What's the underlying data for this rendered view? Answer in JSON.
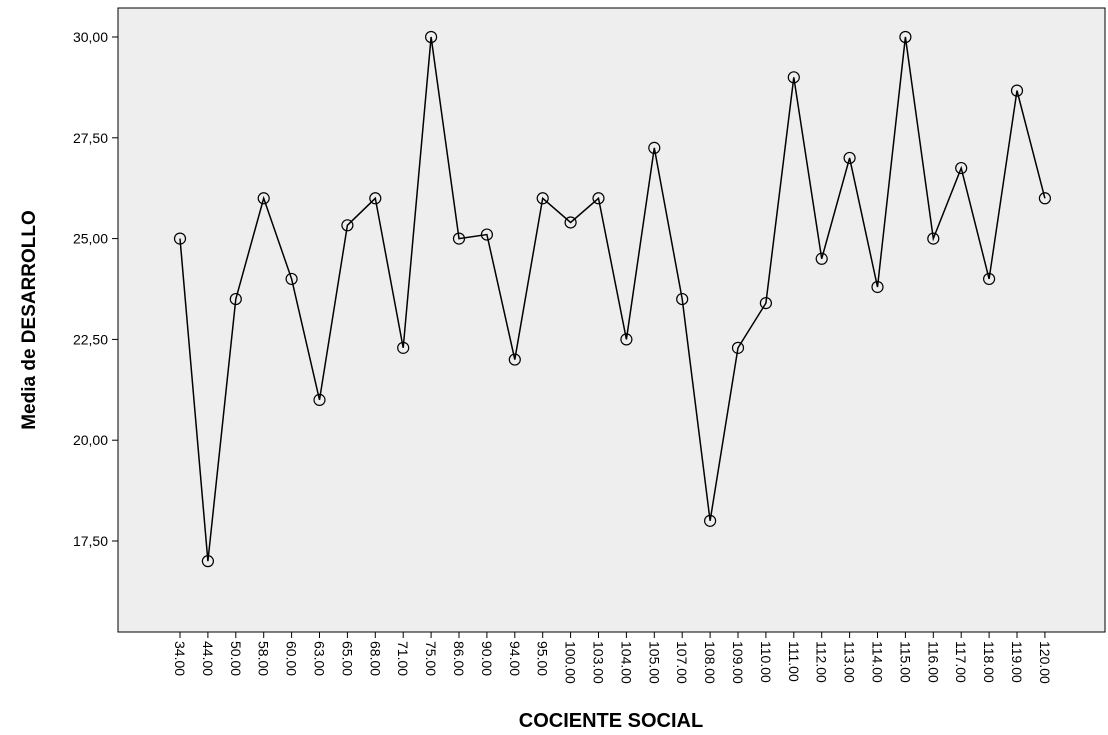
{
  "chart_data": {
    "type": "line",
    "title": "",
    "xlabel": "COCIENTE SOCIAL",
    "ylabel": "Media de DESARROLLO",
    "ylim": [
      15.0,
      30.6
    ],
    "yticks": [
      "17,50",
      "20,00",
      "22,50",
      "25,00",
      "27,50",
      "30,00"
    ],
    "ytick_values": [
      17.5,
      20.0,
      22.5,
      25.0,
      27.5,
      30.0
    ],
    "categories": [
      "34.00",
      "44.00",
      "50.00",
      "58.00",
      "60.00",
      "63.00",
      "65.00",
      "68.00",
      "71.00",
      "75.00",
      "86.00",
      "90.00",
      "94.00",
      "95.00",
      "100.00",
      "103.00",
      "104.00",
      "105.00",
      "107.00",
      "108.00",
      "109.00",
      "110.00",
      "111.00",
      "112.00",
      "113.00",
      "114.00",
      "115.00",
      "116.00",
      "117.00",
      "118.00",
      "119.00",
      "120.00"
    ],
    "series": [
      {
        "values": [
          25.0,
          17.0,
          23.5,
          26.0,
          24.0,
          21.0,
          25.33,
          26.0,
          22.29,
          30.0,
          25.0,
          25.1,
          22.0,
          26.0,
          25.4,
          26.0,
          22.5,
          27.25,
          23.5,
          18.0,
          22.29,
          23.4,
          29.0,
          24.5,
          27.0,
          23.8,
          30.0,
          25.0,
          26.75,
          24.0,
          28.67,
          26.0
        ]
      }
    ],
    "colors": {
      "plot_bg": "#eeeeee",
      "line": "#000000",
      "marker": "#000000"
    },
    "grid": false,
    "legend": "none",
    "marker": "circle"
  }
}
